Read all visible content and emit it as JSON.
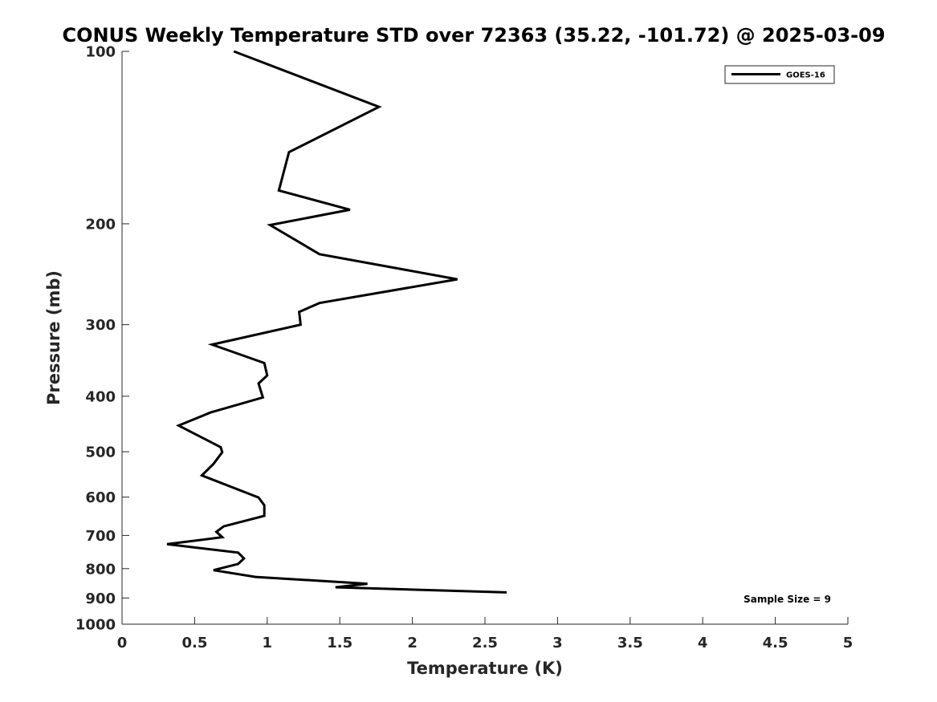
{
  "chart_data": {
    "type": "line",
    "title": "CONUS Weekly Temperature STD over 72363 (35.22, -101.72) @ 2025-03-09",
    "xlabel": "Temperature (K)",
    "ylabel": "Pressure (mb)",
    "xlim": [
      0,
      5
    ],
    "ylim": [
      1000,
      100
    ],
    "y_scale": "log",
    "y_reversed": true,
    "grid": false,
    "legend_position": "top-right",
    "x_ticks": [
      0,
      0.5,
      1,
      1.5,
      2,
      2.5,
      3,
      3.5,
      4,
      4.5,
      5
    ],
    "x_tick_labels": [
      "0",
      "0.5",
      "1",
      "1.5",
      "2",
      "2.5",
      "3",
      "3.5",
      "4",
      "4.5",
      "5"
    ],
    "y_ticks": [
      100,
      200,
      300,
      400,
      500,
      600,
      700,
      800,
      900,
      1000
    ],
    "y_tick_labels": [
      "100",
      "200",
      "300",
      "400",
      "500",
      "600",
      "700",
      "800",
      "900",
      "1000"
    ],
    "series": [
      {
        "name": "GOES-16",
        "color": "#000000",
        "points": [
          {
            "x": 0.77,
            "y": 100
          },
          {
            "x": 1.77,
            "y": 125
          },
          {
            "x": 1.15,
            "y": 150
          },
          {
            "x": 1.08,
            "y": 175
          },
          {
            "x": 1.57,
            "y": 189
          },
          {
            "x": 1.02,
            "y": 201
          },
          {
            "x": 1.36,
            "y": 226
          },
          {
            "x": 2.31,
            "y": 250
          },
          {
            "x": 1.36,
            "y": 275
          },
          {
            "x": 1.22,
            "y": 285
          },
          {
            "x": 1.23,
            "y": 300
          },
          {
            "x": 0.62,
            "y": 325
          },
          {
            "x": 0.98,
            "y": 350
          },
          {
            "x": 1.0,
            "y": 368
          },
          {
            "x": 0.94,
            "y": 380
          },
          {
            "x": 0.97,
            "y": 402
          },
          {
            "x": 0.61,
            "y": 427
          },
          {
            "x": 0.39,
            "y": 450
          },
          {
            "x": 0.57,
            "y": 475
          },
          {
            "x": 0.68,
            "y": 491
          },
          {
            "x": 0.69,
            "y": 501
          },
          {
            "x": 0.63,
            "y": 525
          },
          {
            "x": 0.55,
            "y": 550
          },
          {
            "x": 0.94,
            "y": 601
          },
          {
            "x": 0.98,
            "y": 620
          },
          {
            "x": 0.98,
            "y": 647
          },
          {
            "x": 0.7,
            "y": 675
          },
          {
            "x": 0.65,
            "y": 690
          },
          {
            "x": 0.69,
            "y": 705
          },
          {
            "x": 0.31,
            "y": 725
          },
          {
            "x": 0.8,
            "y": 750
          },
          {
            "x": 0.84,
            "y": 768
          },
          {
            "x": 0.8,
            "y": 785
          },
          {
            "x": 0.63,
            "y": 805
          },
          {
            "x": 0.92,
            "y": 827
          },
          {
            "x": 1.69,
            "y": 850
          },
          {
            "x": 1.47,
            "y": 862
          },
          {
            "x": 2.65,
            "y": 880
          }
        ]
      }
    ],
    "legend": [
      {
        "label": "GOES-16",
        "color": "#000000"
      }
    ],
    "annotations": [
      {
        "text": "Sample Size = 9",
        "position": "bottom-right"
      }
    ]
  }
}
